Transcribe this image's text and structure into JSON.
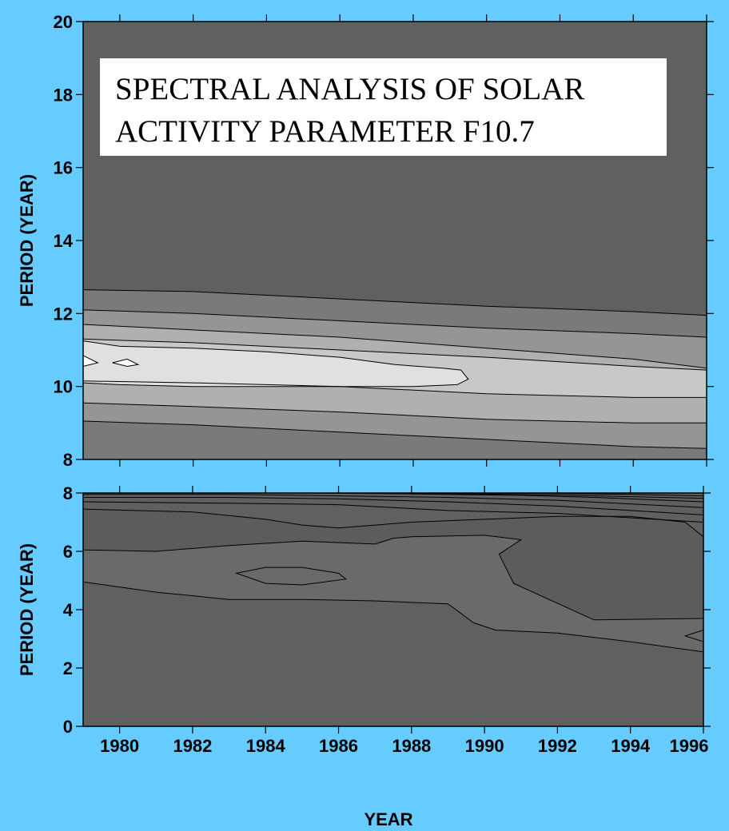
{
  "chart_data": [
    {
      "type": "contour",
      "title_lines": [
        "SPECTRAL ANALYSIS OF SOLAR",
        "ACTIVITY PARAMETER F10.7"
      ],
      "xlabel": "",
      "ylabel": "PERIOD (YEAR)",
      "xlim": [
        1979,
        1996
      ],
      "ylim": [
        8,
        20
      ],
      "yticks": [
        8,
        10,
        12,
        14,
        16,
        18,
        20
      ],
      "xticks": [
        1980,
        1982,
        1984,
        1986,
        1988,
        1990,
        1992,
        1994,
        1996
      ],
      "fill_colors": [
        "#606060",
        "#7a7a7a",
        "#959595",
        "#b0b0b0",
        "#c8c8c8",
        "#e0e0e0",
        "#ffffff"
      ],
      "contours": [
        {
          "year": [
            1979,
            1982,
            1986,
            1990,
            1994,
            1996
          ],
          "period": [
            12.65,
            12.6,
            12.4,
            12.2,
            12.05,
            11.95
          ]
        },
        {
          "year": [
            1979,
            1982,
            1986,
            1990,
            1994,
            1996
          ],
          "period": [
            12.1,
            12.0,
            11.8,
            11.6,
            11.45,
            11.35
          ]
        },
        {
          "year": [
            1979,
            1982,
            1986,
            1990,
            1994,
            1996
          ],
          "period": [
            11.7,
            11.55,
            11.35,
            11.05,
            10.75,
            10.5
          ]
        },
        {
          "year": [
            1979,
            1982,
            1986,
            1990,
            1994,
            1996
          ],
          "period": [
            11.3,
            11.2,
            11.0,
            10.8,
            10.55,
            10.45
          ]
        },
        {
          "year": [
            1979,
            1982,
            1986,
            1990,
            1994,
            1996
          ],
          "period": [
            10.15,
            10.1,
            10.0,
            9.8,
            9.7,
            9.7
          ]
        },
        {
          "year": [
            1979,
            1982,
            1986,
            1990,
            1994,
            1996
          ],
          "period": [
            9.55,
            9.45,
            9.3,
            9.1,
            9.0,
            9.0
          ]
        },
        {
          "year": [
            1979,
            1982,
            1986,
            1990,
            1994,
            1996
          ],
          "period": [
            9.05,
            8.95,
            8.75,
            8.55,
            8.35,
            8.3
          ]
        },
        {
          "year": [
            1979,
            1980,
            1982,
            1984,
            1986,
            1987.5,
            1988.8,
            1989.3,
            1989.5,
            1989.2,
            1988,
            1986,
            1984,
            1982,
            1980,
            1979
          ],
          "period": [
            11.25,
            11.1,
            11.05,
            10.95,
            10.8,
            10.6,
            10.5,
            10.45,
            10.2,
            10.05,
            10.0,
            10.0,
            10.0,
            10.0,
            10.05,
            10.1
          ]
        },
        {
          "year": [
            1979,
            1979.4,
            1979
          ],
          "period": [
            10.85,
            10.65,
            10.55
          ]
        },
        {
          "year": [
            1979.8,
            1980.2,
            1980.5,
            1980.2,
            1979.8
          ],
          "period": [
            10.65,
            10.75,
            10.6,
            10.55,
            10.65
          ]
        }
      ]
    },
    {
      "type": "contour",
      "xlabel": "YEAR",
      "ylabel": "PERIOD (YEAR)",
      "xlim": [
        1979,
        1996
      ],
      "ylim": [
        0,
        8
      ],
      "yticks": [
        0,
        2,
        4,
        6,
        8
      ],
      "xticks": [
        1980,
        1982,
        1984,
        1986,
        1988,
        1990,
        1992,
        1994,
        1996
      ],
      "contours": [
        {
          "year": [
            1979,
            1981,
            1983,
            1985,
            1987,
            1989,
            1989.7,
            1990.3,
            1992,
            1994,
            1996
          ],
          "period": [
            4.95,
            4.6,
            4.35,
            4.35,
            4.3,
            4.2,
            3.55,
            3.3,
            3.2,
            2.9,
            2.55
          ]
        },
        {
          "year": [
            1979,
            1981,
            1983,
            1985,
            1987,
            1987.5,
            1988,
            1990,
            1991,
            1990.4,
            1990.8,
            1993,
            1996
          ],
          "period": [
            6.05,
            6.0,
            6.2,
            6.35,
            6.25,
            6.45,
            6.5,
            6.55,
            6.4,
            5.9,
            4.9,
            3.65,
            3.7
          ]
        },
        {
          "year": [
            1979,
            1982,
            1984,
            1985,
            1986,
            1988,
            1990,
            1992,
            1994,
            1995.5,
            1996
          ],
          "period": [
            7.45,
            7.35,
            7.1,
            6.9,
            6.8,
            7.0,
            7.1,
            7.2,
            7.2,
            7.0,
            6.5
          ]
        },
        {
          "year": [
            1979,
            1983,
            1986,
            1989,
            1992,
            1996
          ],
          "period": [
            7.7,
            7.65,
            7.6,
            7.4,
            7.3,
            7.0
          ]
        },
        {
          "year": [
            1979,
            1983,
            1986,
            1989,
            1992,
            1996
          ],
          "period": [
            7.85,
            7.85,
            7.8,
            7.7,
            7.55,
            7.25
          ]
        },
        {
          "year": [
            1979,
            1983,
            1986,
            1989,
            1992,
            1996
          ],
          "period": [
            7.95,
            7.95,
            7.9,
            7.85,
            7.75,
            7.5
          ]
        },
        {
          "year": [
            1982,
            1985,
            1988,
            1991,
            1993,
            1996
          ],
          "period": [
            8.0,
            8.0,
            7.97,
            7.92,
            7.85,
            7.7
          ]
        },
        {
          "year": [
            1986,
            1989,
            1992,
            1996
          ],
          "period": [
            8.0,
            7.98,
            7.93,
            7.82
          ]
        },
        {
          "year": [
            1989,
            1992,
            1994,
            1996
          ],
          "period": [
            8.0,
            7.98,
            7.95,
            7.9
          ]
        },
        {
          "year": [
            1983.2,
            1984,
            1985,
            1986,
            1986.2,
            1985,
            1984,
            1983.2
          ],
          "period": [
            5.25,
            5.45,
            5.45,
            5.25,
            5.05,
            4.85,
            4.9,
            5.25
          ]
        },
        {
          "year": [
            1996,
            1995.5,
            1996
          ],
          "period": [
            3.3,
            3.1,
            2.9
          ]
        }
      ]
    }
  ]
}
